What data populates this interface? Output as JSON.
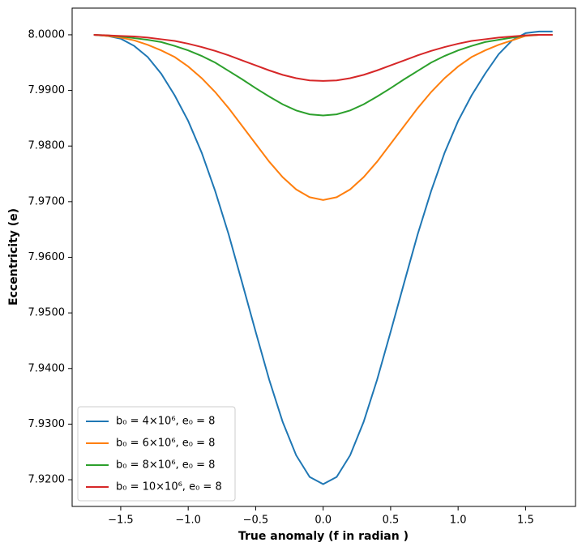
{
  "chart_data": {
    "type": "line",
    "xlabel": "True anomaly (f in radian )",
    "ylabel": "Eccentricity (e)",
    "x": [
      -1.7,
      -1.6,
      -1.5,
      -1.4,
      -1.3,
      -1.2,
      -1.1,
      -1.0,
      -0.9,
      -0.8,
      -0.7,
      -0.6,
      -0.5,
      -0.4,
      -0.3,
      -0.2,
      -0.1,
      0.0,
      0.1,
      0.2,
      0.3,
      0.4,
      0.5,
      0.6,
      0.7,
      0.8,
      0.9,
      1.0,
      1.1,
      1.2,
      1.3,
      1.4,
      1.5,
      1.6,
      1.7
    ],
    "series": [
      {
        "name": "b₀ = 4×10⁶, e₀ = 8",
        "color": "#1f77b4",
        "values": [
          8.0,
          7.9998,
          7.9993,
          7.998,
          7.996,
          7.993,
          7.9891,
          7.9845,
          7.9788,
          7.9719,
          7.9641,
          7.9554,
          7.9466,
          7.938,
          7.9304,
          7.9244,
          7.9205,
          7.9192,
          7.9205,
          7.9244,
          7.9304,
          7.938,
          7.9466,
          7.9554,
          7.9641,
          7.9719,
          7.9788,
          7.9845,
          7.9891,
          7.993,
          7.9965,
          7.999,
          8.0003,
          8.0006,
          8.0006
        ]
      },
      {
        "name": "b₀ = 6×10⁶, e₀ = 8",
        "color": "#ff7f0e",
        "values": [
          8.0,
          7.9998,
          7.9995,
          7.999,
          7.9982,
          7.9972,
          7.996,
          7.9943,
          7.9922,
          7.9897,
          7.9868,
          7.9836,
          7.9804,
          7.9772,
          7.9744,
          7.9722,
          7.9708,
          7.9703,
          7.9708,
          7.9722,
          7.9744,
          7.9772,
          7.9804,
          7.9836,
          7.9868,
          7.9897,
          7.9922,
          7.9943,
          7.996,
          7.9972,
          7.9982,
          7.999,
          7.9998,
          8.0,
          8.0
        ]
      },
      {
        "name": "b₀ = 8×10⁶, e₀ = 8",
        "color": "#2ca02c",
        "values": [
          8.0,
          7.9999,
          7.9997,
          7.9994,
          7.9991,
          7.9987,
          7.998,
          7.9972,
          7.9962,
          7.995,
          7.9935,
          7.992,
          7.9904,
          7.9889,
          7.9875,
          7.9864,
          7.9857,
          7.9855,
          7.9857,
          7.9864,
          7.9875,
          7.9889,
          7.9904,
          7.992,
          7.9935,
          7.995,
          7.9962,
          7.9972,
          7.998,
          7.9987,
          7.9991,
          7.9995,
          7.9999,
          8.0,
          8.0
        ]
      },
      {
        "name": "b₀ = 10×10⁶, e₀ = 8",
        "color": "#d62728",
        "values": [
          8.0,
          7.9999,
          7.9998,
          7.9997,
          7.9995,
          7.9992,
          7.9989,
          7.9984,
          7.9978,
          7.9971,
          7.9963,
          7.9954,
          7.9945,
          7.9936,
          7.9928,
          7.9922,
          7.9918,
          7.9917,
          7.9918,
          7.9922,
          7.9928,
          7.9936,
          7.9945,
          7.9954,
          7.9963,
          7.9971,
          7.9978,
          7.9984,
          7.9989,
          7.9992,
          7.9995,
          7.9997,
          7.9999,
          8.0,
          8.0
        ]
      }
    ],
    "xlim": [
      -1.86,
      1.87
    ],
    "ylim": [
      7.9152,
      8.0048
    ],
    "xticks": [
      {
        "value": -1.5,
        "label": "−1.5"
      },
      {
        "value": -1.0,
        "label": "−1.0"
      },
      {
        "value": -0.5,
        "label": "−0.5"
      },
      {
        "value": 0,
        "label": "0.0"
      },
      0.5,
      {
        "value": 1,
        "label": "1.0"
      },
      1.5
    ],
    "yticks": [
      {
        "value": 7.92,
        "label": "7.9200"
      },
      {
        "value": 7.93,
        "label": "7.9300"
      },
      {
        "value": 7.94,
        "label": "7.9400"
      },
      {
        "value": 7.95,
        "label": "7.9500"
      },
      {
        "value": 7.96,
        "label": "7.9600"
      },
      {
        "value": 7.97,
        "label": "7.9700"
      },
      {
        "value": 7.98,
        "label": "7.9800"
      },
      {
        "value": 7.99,
        "label": "7.9900"
      },
      {
        "value": 8,
        "label": "8.0000"
      }
    ],
    "legend": "lower left",
    "grid": false
  }
}
